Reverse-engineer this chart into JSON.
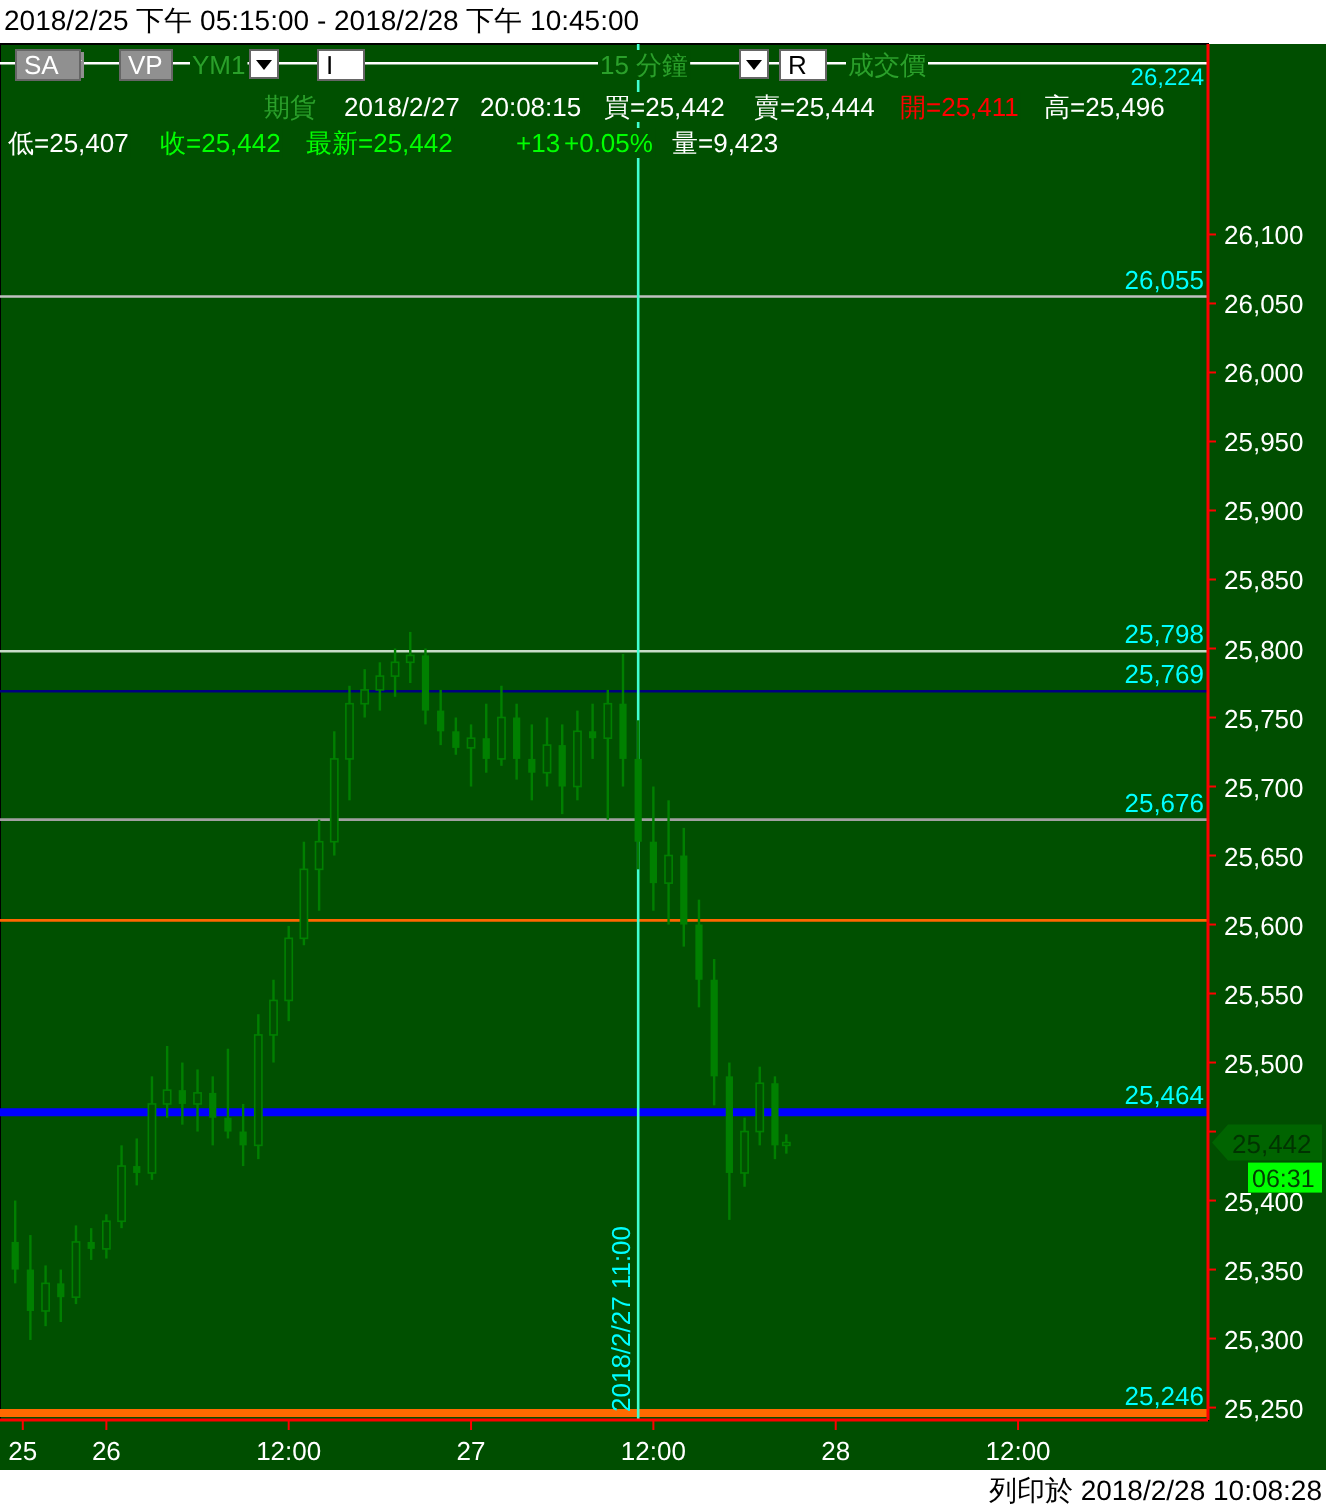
{
  "chart_data": {
    "type": "candlestick",
    "title": "2018/2/25 下午 05:15:00 - 2018/2/28 下午 10:45:00",
    "x": [
      "2018-02-25T18:00",
      "2018-02-25T19:00",
      "2018-02-25T20:00",
      "2018-02-25T21:00",
      "2018-02-25T22:00",
      "2018-02-25T23:00",
      "2018-02-26T00:00",
      "2018-02-26T01:00",
      "2018-02-26T02:00",
      "2018-02-26T03:00",
      "2018-02-26T04:00",
      "2018-02-26T05:00",
      "2018-02-26T06:00",
      "2018-02-26T07:00",
      "2018-02-26T08:00",
      "2018-02-26T09:00",
      "2018-02-26T10:00",
      "2018-02-26T11:00",
      "2018-02-26T12:00",
      "2018-02-26T13:00",
      "2018-02-26T14:00",
      "2018-02-26T15:00",
      "2018-02-26T16:00",
      "2018-02-26T17:00",
      "2018-02-26T18:00",
      "2018-02-26T19:00",
      "2018-02-26T20:00",
      "2018-02-26T21:00",
      "2018-02-26T22:00",
      "2018-02-26T23:00",
      "2018-02-27T00:00",
      "2018-02-27T01:00",
      "2018-02-27T02:00",
      "2018-02-27T03:00",
      "2018-02-27T04:00",
      "2018-02-27T05:00",
      "2018-02-27T06:00",
      "2018-02-27T07:00",
      "2018-02-27T08:00",
      "2018-02-27T09:00",
      "2018-02-27T10:00",
      "2018-02-27T11:00",
      "2018-02-27T12:00",
      "2018-02-27T13:00",
      "2018-02-27T14:00",
      "2018-02-27T15:00",
      "2018-02-27T16:00",
      "2018-02-27T17:00",
      "2018-02-27T18:00",
      "2018-02-27T19:00",
      "2018-02-27T20:00",
      "2018-02-27T20:45"
    ],
    "ohlc": [
      [
        25370,
        25400,
        25340,
        25350
      ],
      [
        25350,
        25375,
        25299,
        25320
      ],
      [
        25320,
        25353,
        25309,
        25340
      ],
      [
        25340,
        25350,
        25312,
        25330
      ],
      [
        25330,
        25382,
        25325,
        25370
      ],
      [
        25370,
        25380,
        25357,
        25365
      ],
      [
        25365,
        25390,
        25358,
        25385
      ],
      [
        25385,
        25440,
        25380,
        25425
      ],
      [
        25425,
        25445,
        25411,
        25420
      ],
      [
        25420,
        25490,
        25415,
        25470
      ],
      [
        25470,
        25512,
        25460,
        25480
      ],
      [
        25480,
        25500,
        25455,
        25470
      ],
      [
        25470,
        25495,
        25450,
        25478
      ],
      [
        25478,
        25490,
        25440,
        25460
      ],
      [
        25460,
        25510,
        25445,
        25450
      ],
      [
        25450,
        25470,
        25425,
        25440
      ],
      [
        25440,
        25535,
        25430,
        25520
      ],
      [
        25520,
        25560,
        25500,
        25545
      ],
      [
        25545,
        25599,
        25530,
        25590
      ],
      [
        25590,
        25660,
        25585,
        25640
      ],
      [
        25640,
        25676,
        25610,
        25660
      ],
      [
        25660,
        25740,
        25650,
        25720
      ],
      [
        25720,
        25773,
        25690,
        25760
      ],
      [
        25760,
        25785,
        25750,
        25770
      ],
      [
        25770,
        25790,
        25755,
        25780
      ],
      [
        25780,
        25800,
        25765,
        25790
      ],
      [
        25790,
        25812,
        25775,
        25795
      ],
      [
        25795,
        25800,
        25745,
        25755
      ],
      [
        25755,
        25770,
        25730,
        25740
      ],
      [
        25740,
        25750,
        25723,
        25728
      ],
      [
        25728,
        25745,
        25700,
        25735
      ],
      [
        25735,
        25760,
        25710,
        25720
      ],
      [
        25720,
        25773,
        25715,
        25750
      ],
      [
        25750,
        25760,
        25705,
        25720
      ],
      [
        25720,
        25745,
        25690,
        25710
      ],
      [
        25710,
        25750,
        25700,
        25730
      ],
      [
        25730,
        25745,
        25680,
        25700
      ],
      [
        25700,
        25755,
        25690,
        25740
      ],
      [
        25740,
        25760,
        25720,
        25735
      ],
      [
        25735,
        25770,
        25676,
        25760
      ],
      [
        25760,
        25796,
        25700,
        25720
      ],
      [
        25720,
        25748,
        25640,
        25660
      ],
      [
        25660,
        25700,
        25610,
        25630
      ],
      [
        25630,
        25690,
        25600,
        25650
      ],
      [
        25650,
        25670,
        25584,
        25600
      ],
      [
        25600,
        25618,
        25540,
        25560
      ],
      [
        25560,
        25575,
        25469,
        25490
      ],
      [
        25490,
        25500,
        25386,
        25420
      ],
      [
        25420,
        25460,
        25410,
        25450
      ],
      [
        25450,
        25497,
        25440,
        25485
      ],
      [
        25485,
        25490,
        25430,
        25440
      ],
      [
        25440,
        25448,
        25434,
        25442
      ]
    ],
    "color": "#008000",
    "xlim": [
      "2018-02-25T17:00",
      "2018-03-01T00:30"
    ],
    "xticks": [
      {
        "value": "2018-02-25T18:30",
        "label": "25"
      },
      {
        "value": "2018-02-26T00:00",
        "label": "26"
      },
      {
        "value": "2018-02-26T12:00",
        "label": "12:00"
      },
      {
        "value": "2018-02-27T00:00",
        "label": "27"
      },
      {
        "value": "2018-02-27T12:00",
        "label": "12:00"
      },
      {
        "value": "2018-02-28T00:00",
        "label": "28"
      },
      {
        "value": "2018-02-28T12:00",
        "label": "12:00"
      }
    ],
    "ylim": [
      25241,
      26238
    ],
    "yticks": [
      {
        "value": 25250,
        "label": "25,250"
      },
      {
        "value": 25300,
        "label": "25,300"
      },
      {
        "value": 25350,
        "label": "25,350"
      },
      {
        "value": 25400,
        "label": "25,400"
      },
      {
        "value": 25450,
        "label": null
      },
      {
        "value": 25500,
        "label": "25,500"
      },
      {
        "value": 25550,
        "label": "25,550"
      },
      {
        "value": 25600,
        "label": "25,600"
      },
      {
        "value": 25650,
        "label": "25,650"
      },
      {
        "value": 25700,
        "label": "25,700"
      },
      {
        "value": 25750,
        "label": "25,750"
      },
      {
        "value": 25800,
        "label": "25,800"
      },
      {
        "value": 25850,
        "label": "25,850"
      },
      {
        "value": 25900,
        "label": "25,900"
      },
      {
        "value": 25950,
        "label": "25,950"
      },
      {
        "value": 26000,
        "label": "26,000"
      },
      {
        "value": 26050,
        "label": "26,050"
      },
      {
        "value": 26100,
        "label": "26,100"
      }
    ],
    "ref_lines": [
      {
        "axis": "y",
        "value": 26224,
        "label": "26,224",
        "color": "#ffffff"
      },
      {
        "axis": "y",
        "value": 26055,
        "label": "26,055",
        "color": "#c0c0c0"
      },
      {
        "axis": "y",
        "value": 25798,
        "label": "25,798",
        "color": "#c8dcc8"
      },
      {
        "axis": "y",
        "value": 25769,
        "label": "25,769",
        "color": "#000080"
      },
      {
        "axis": "y",
        "value": 25676,
        "label": "25,676",
        "color": "#a0a0a0"
      },
      {
        "axis": "y",
        "value": 25603,
        "color": "#ff6600"
      },
      {
        "axis": "y",
        "value": 25464,
        "label": "25,464",
        "color": "#0000ff"
      },
      {
        "axis": "y",
        "value": 25246,
        "label": "25,246",
        "color": "#ff6a00"
      },
      {
        "axis": "x",
        "value": "2018-02-27T11:00",
        "label": "2018/2/27 11:00",
        "color": "#40ffd0"
      }
    ],
    "annotations": [
      "SA",
      "VP",
      "YM1",
      "I",
      "15 分鐘",
      "R",
      "成交價",
      "期貨",
      "2018/2/27",
      "20:08:15",
      "買=25,442",
      "賣=25,444",
      "開=25,411",
      "高=25,496",
      "低=25,407",
      "收=25,442",
      "最新=25,442",
      "+13",
      "+0.05%",
      "量=9,423",
      "25,442",
      "06:31",
      "列印於 2018/2/28 10:08:28"
    ]
  }
}
